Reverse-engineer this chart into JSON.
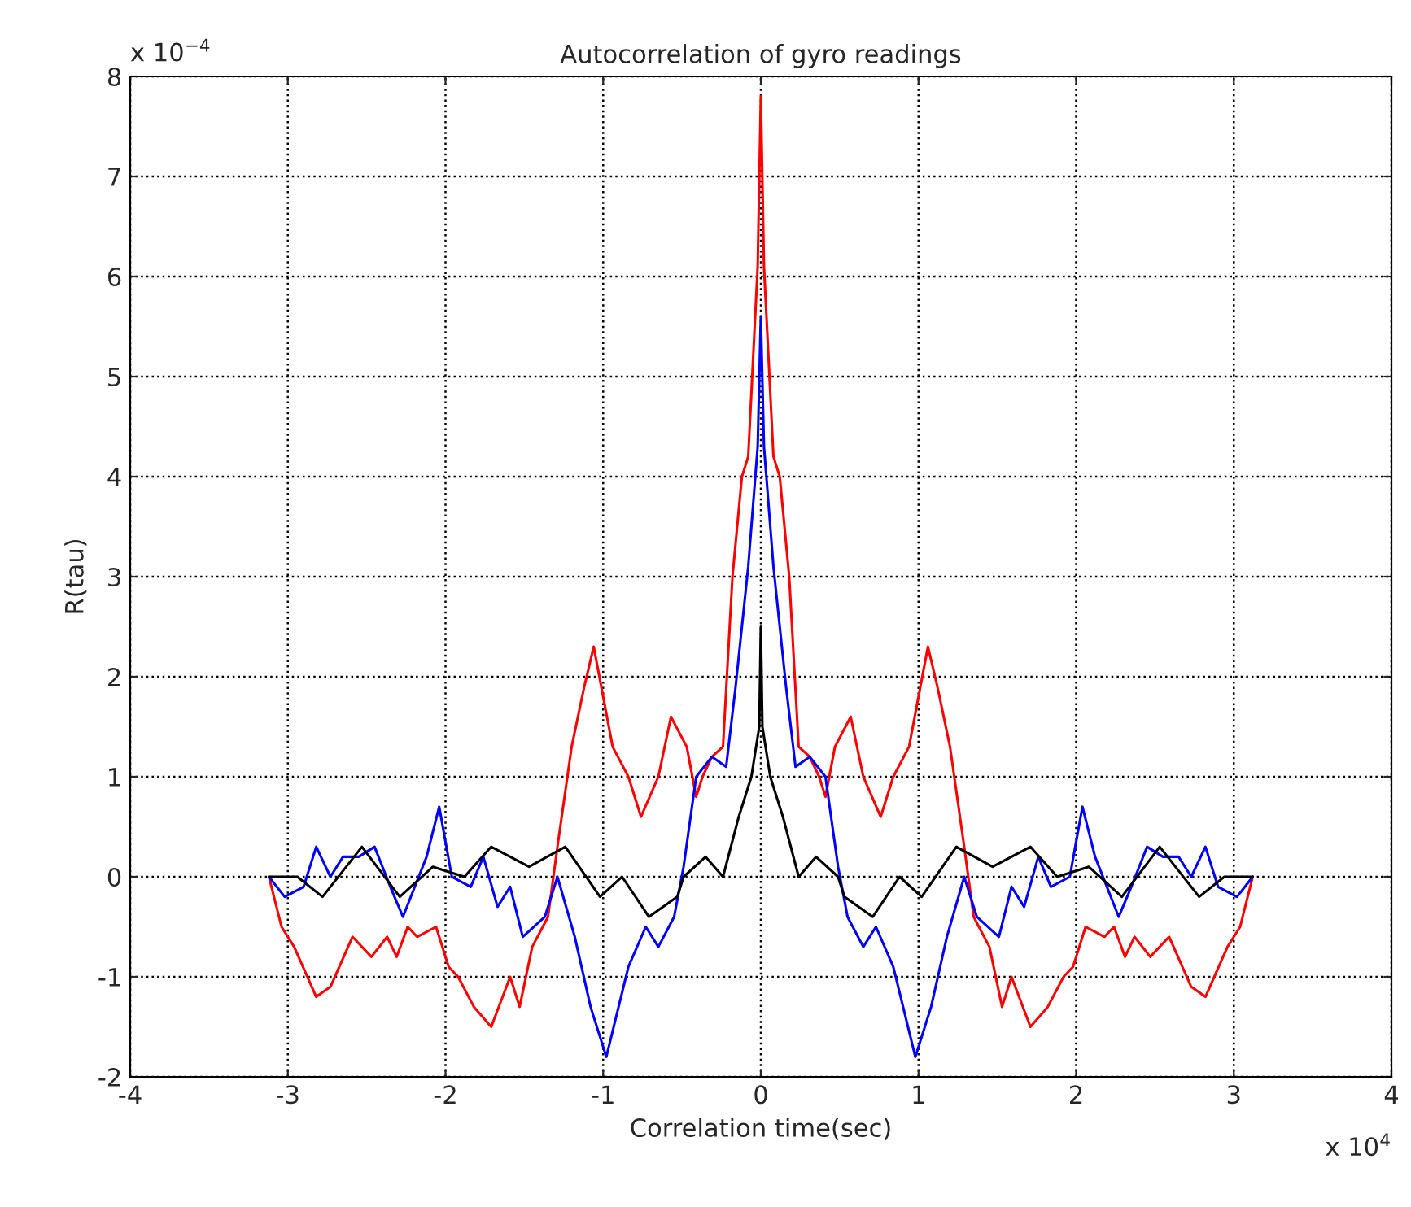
{
  "chart_data": {
    "type": "line",
    "title": "Autocorrelation of gyro readings",
    "xlabel": "Correlation time(sec)",
    "ylabel": "R(tau)",
    "annotations": [
      "x 10$^{−4}$",
      "x 10$^{4}$"
    ],
    "xlim": [
      -4,
      4
    ],
    "xticks": [
      -4,
      -3,
      -2,
      -1,
      0,
      1,
      2,
      3,
      4
    ],
    "ylim": [
      -2,
      8
    ],
    "yticks": [
      -2,
      -1,
      0,
      1,
      2,
      3,
      4,
      5,
      6,
      7,
      8
    ],
    "grid": true,
    "line_style": "solid",
    "marker": "none",
    "series": [
      {
        "color": "#ff0000",
        "x": [
          -3.12,
          -3.04,
          -2.96,
          -2.82,
          -2.73,
          -2.59,
          -2.47,
          -2.37,
          -2.31,
          -2.24,
          -2.18,
          -2.06,
          -1.98,
          -1.92,
          -1.82,
          -1.71,
          -1.59,
          -1.53,
          -1.45,
          -1.35,
          -1.29,
          -1.2,
          -1.12,
          -1.06,
          -0.94,
          -0.84,
          -0.76,
          -0.65,
          -0.57,
          -0.47,
          -0.41,
          -0.37,
          -0.31,
          -0.24,
          -0.18,
          -0.12,
          -0.08,
          -0.02,
          0,
          0.02,
          0.08,
          0.12,
          0.18,
          0.24,
          0.31,
          0.37,
          0.41,
          0.47,
          0.57,
          0.65,
          0.76,
          0.84,
          0.94,
          1.06,
          1.12,
          1.2,
          1.29,
          1.35,
          1.45,
          1.53,
          1.59,
          1.71,
          1.82,
          1.92,
          1.98,
          2.06,
          2.18,
          2.24,
          2.31,
          2.37,
          2.47,
          2.59,
          2.73,
          2.82,
          2.96,
          3.04,
          3.12
        ],
        "values": [
          0,
          -0.5,
          -0.7,
          -1.2,
          -1.1,
          -0.6,
          -0.8,
          -0.6,
          -0.8,
          -0.5,
          -0.6,
          -0.5,
          -0.9,
          -1.0,
          -1.3,
          -1.5,
          -1.0,
          -1.3,
          -0.7,
          -0.4,
          0.3,
          1.3,
          1.9,
          2.3,
          1.3,
          1.0,
          0.6,
          1.0,
          1.6,
          1.3,
          0.8,
          1.0,
          1.2,
          1.3,
          3.0,
          4.0,
          4.2,
          6.1,
          7.8,
          6.1,
          4.2,
          4.0,
          3.0,
          1.3,
          1.2,
          1.0,
          0.8,
          1.3,
          1.6,
          1.0,
          0.6,
          1.0,
          1.3,
          2.3,
          1.9,
          1.3,
          0.3,
          -0.4,
          -0.7,
          -1.3,
          -1.0,
          -1.5,
          -1.3,
          -1.0,
          -0.9,
          -0.5,
          -0.6,
          -0.5,
          -0.8,
          -0.6,
          -0.8,
          -0.6,
          -1.1,
          -1.2,
          -0.7,
          -0.5,
          0
        ]
      },
      {
        "color": "#0000ff",
        "x": [
          -3.12,
          -3.02,
          -2.9,
          -2.82,
          -2.73,
          -2.65,
          -2.55,
          -2.45,
          -2.35,
          -2.27,
          -2.12,
          -2.04,
          -1.96,
          -1.84,
          -1.76,
          -1.67,
          -1.59,
          -1.51,
          -1.37,
          -1.29,
          -1.18,
          -1.08,
          -0.98,
          -0.84,
          -0.73,
          -0.65,
          -0.55,
          -0.49,
          -0.41,
          -0.31,
          -0.22,
          -0.16,
          -0.08,
          -0.02,
          0,
          0.02,
          0.08,
          0.16,
          0.22,
          0.31,
          0.41,
          0.49,
          0.55,
          0.65,
          0.73,
          0.84,
          0.98,
          1.08,
          1.18,
          1.29,
          1.37,
          1.51,
          1.59,
          1.67,
          1.76,
          1.84,
          1.96,
          2.04,
          2.12,
          2.27,
          2.35,
          2.45,
          2.55,
          2.65,
          2.73,
          2.82,
          2.9,
          3.02,
          3.12
        ],
        "values": [
          0,
          -0.2,
          -0.1,
          0.3,
          0,
          0.2,
          0.2,
          0.3,
          -0.1,
          -0.4,
          0.2,
          0.7,
          0,
          -0.1,
          0.2,
          -0.3,
          -0.1,
          -0.6,
          -0.4,
          0,
          -0.6,
          -1.3,
          -1.8,
          -0.9,
          -0.5,
          -0.7,
          -0.4,
          0.1,
          1.0,
          1.2,
          1.1,
          1.9,
          3.1,
          4.3,
          5.6,
          4.3,
          3.1,
          1.9,
          1.1,
          1.2,
          1.0,
          0.1,
          -0.4,
          -0.7,
          -0.5,
          -0.9,
          -1.8,
          -1.3,
          -0.6,
          0,
          -0.4,
          -0.6,
          -0.1,
          -0.3,
          0.2,
          -0.1,
          0,
          0.7,
          0.2,
          -0.4,
          -0.1,
          0.3,
          0.2,
          0.2,
          0,
          0.3,
          -0.1,
          -0.2,
          0
        ]
      },
      {
        "color": "#000000",
        "x": [
          -3.12,
          -2.94,
          -2.78,
          -2.53,
          -2.29,
          -2.08,
          -1.88,
          -1.71,
          -1.47,
          -1.24,
          -1.02,
          -0.88,
          -0.71,
          -0.53,
          -0.49,
          -0.35,
          -0.24,
          -0.14,
          -0.06,
          -0.01,
          0,
          0.01,
          0.06,
          0.14,
          0.24,
          0.35,
          0.49,
          0.53,
          0.71,
          0.88,
          1.02,
          1.24,
          1.47,
          1.71,
          1.88,
          2.08,
          2.29,
          2.53,
          2.78,
          2.94,
          3.12
        ],
        "values": [
          0,
          0,
          -0.2,
          0.3,
          -0.2,
          0.1,
          0,
          0.3,
          0.1,
          0.3,
          -0.2,
          0,
          -0.4,
          -0.2,
          0,
          0.2,
          0,
          0.6,
          1.0,
          1.5,
          2.5,
          1.5,
          1.0,
          0.6,
          0,
          0.2,
          0,
          -0.2,
          -0.4,
          0,
          -0.2,
          0.3,
          0.1,
          0.3,
          0,
          0.1,
          -0.2,
          0.3,
          -0.2,
          0,
          0
        ]
      }
    ]
  }
}
